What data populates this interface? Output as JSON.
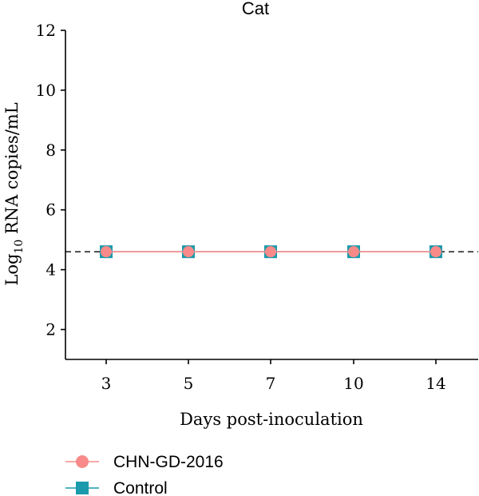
{
  "chart_data": {
    "type": "line",
    "title": "Cat",
    "xlabel": "Days post-inoculation",
    "ylabel_main": "Log",
    "ylabel_sub": "10",
    "ylabel_rest": " RNA copies/mL",
    "categories": [
      "3",
      "5",
      "7",
      "10",
      "14"
    ],
    "ylim": [
      1,
      12
    ],
    "yticks": [
      2,
      4,
      6,
      8,
      10,
      12
    ],
    "threshold": 4.6,
    "series": [
      {
        "name": "CHN-GD-2016",
        "values": [
          4.6,
          4.6,
          4.6,
          4.6,
          4.6
        ],
        "color": "#f88a8a",
        "marker": "circle"
      },
      {
        "name": "Control",
        "values": [
          4.6,
          4.6,
          4.6,
          4.6,
          4.6
        ],
        "color": "#1a9aaa",
        "marker": "square"
      }
    ],
    "grid": false,
    "legend_position": "bottom-left"
  }
}
